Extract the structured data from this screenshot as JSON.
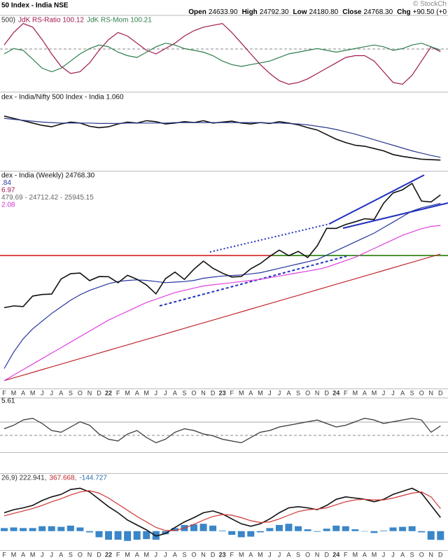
{
  "header": {
    "title": "50 Index - India NSE",
    "watermark": "© StockCh",
    "quote": [
      {
        "label": "Open",
        "value": "24633.90"
      },
      {
        "label": "High",
        "value": "24792.30"
      },
      {
        "label": "Low",
        "value": "24180.80"
      },
      {
        "label": "Close",
        "value": "24768.30"
      },
      {
        "label": "Chg",
        "value": "+90.50 (+0"
      }
    ]
  },
  "chart_data": [
    {
      "type": "line",
      "legend": [
        "500)",
        "JdK RS-Ratio 100.12",
        "JdK RS-Mom 100.21"
      ],
      "legend_colors": [
        "#333333",
        "#a0174f",
        "#2e7d4a"
      ],
      "ylim": [
        98,
        102
      ],
      "series": [
        {
          "color": "#a0174f",
          "values": [
            100.5,
            101.2,
            101.7,
            101.5,
            100.8,
            100.0,
            99.3,
            98.9,
            99.0,
            99.5,
            100.2,
            100.8,
            101.2,
            101.0,
            100.6,
            100.2,
            100.0,
            100.3,
            100.6,
            101.0,
            101.3,
            101.5,
            101.6,
            101.7,
            101.2,
            100.6,
            100.0,
            99.4,
            98.9,
            98.5,
            98.3,
            98.4,
            98.6,
            98.9,
            99.2,
            99.5,
            99.8,
            99.9,
            99.9,
            99.6,
            99.0,
            98.4,
            98.3,
            98.8,
            99.6,
            100.4,
            100.12
          ]
        },
        {
          "color": "#2e7d4a",
          "values": [
            100.0,
            100.3,
            100.2,
            99.7,
            99.2,
            99.0,
            99.2,
            99.6,
            100.0,
            100.3,
            100.5,
            100.4,
            100.1,
            99.9,
            99.8,
            100.1,
            100.4,
            100.6,
            100.5,
            100.3,
            100.2,
            100.1,
            99.9,
            99.6,
            99.4,
            99.3,
            99.4,
            99.5,
            99.6,
            99.8,
            100.0,
            100.1,
            100.2,
            100.3,
            100.2,
            100.1,
            100.2,
            100.3,
            100.4,
            100.5,
            100.4,
            100.2,
            100.3,
            100.5,
            100.6,
            100.4,
            100.21
          ]
        }
      ]
    },
    {
      "type": "line",
      "legend": [
        "dex - India/Nifty 500 Index - India 1.060"
      ],
      "legend_colors": [
        "#111111"
      ],
      "ylim": [
        1.04,
        1.2
      ],
      "series": [
        {
          "color": "#111111",
          "values": [
            1.155,
            1.15,
            1.145,
            1.14,
            1.135,
            1.132,
            1.138,
            1.142,
            1.14,
            1.133,
            1.13,
            1.132,
            1.138,
            1.142,
            1.14,
            1.145,
            1.143,
            1.138,
            1.14,
            1.143,
            1.141,
            1.145,
            1.14,
            1.142,
            1.144,
            1.14,
            1.138,
            1.141,
            1.139,
            1.143,
            1.14,
            1.136,
            1.13,
            1.125,
            1.115,
            1.105,
            1.098,
            1.092,
            1.09,
            1.085,
            1.08,
            1.072,
            1.068,
            1.065,
            1.062,
            1.061,
            1.06
          ]
        },
        {
          "color": "#2b3a8c",
          "values": [
            1.15,
            1.148,
            1.146,
            1.144,
            1.142,
            1.141,
            1.14,
            1.14,
            1.14,
            1.14,
            1.139,
            1.139,
            1.139,
            1.14,
            1.14,
            1.14,
            1.14,
            1.14,
            1.141,
            1.141,
            1.141,
            1.141,
            1.141,
            1.141,
            1.141,
            1.141,
            1.141,
            1.141,
            1.14,
            1.14,
            1.139,
            1.138,
            1.136,
            1.133,
            1.13,
            1.126,
            1.121,
            1.116,
            1.11,
            1.104,
            1.098,
            1.092,
            1.086,
            1.08,
            1.075,
            1.07,
            1.066
          ]
        }
      ]
    },
    {
      "type": "line",
      "legend": [
        "dex - India (Weekly) 24768.30",
        ".84",
        "6.97",
        "479.69 - 24712.42 - 25945.15",
        "2.08"
      ],
      "legend_colors": [
        "#111111",
        "#2535a0",
        "#a0174f",
        "#666666",
        "#d030d0"
      ],
      "ylim": [
        7250,
        26830
      ],
      "categories": [
        "F",
        "M",
        "A",
        "M",
        "J",
        "J",
        "A",
        "S",
        "O",
        "N",
        "D",
        "22",
        "F",
        "M",
        "A",
        "M",
        "J",
        "J",
        "A",
        "S",
        "O",
        "N",
        "D",
        "23",
        "F",
        "M",
        "A",
        "M",
        "J",
        "J",
        "A",
        "S",
        "O",
        "N",
        "D",
        "24",
        "F",
        "M",
        "A",
        "M",
        "J",
        "J",
        "A",
        "S",
        "O",
        "N",
        "D"
      ],
      "series": [
        {
          "color": "#c0282d",
          "values": [
            7900,
            8150,
            8400,
            8650,
            8900,
            9150,
            9400,
            9650,
            9900,
            10150,
            10400,
            10650,
            10900,
            11150,
            11400,
            11650,
            11900,
            12150,
            12400,
            12650,
            12900,
            13150,
            13400,
            13650,
            13900,
            14150,
            14400,
            14650,
            14900,
            15150,
            15400,
            15650,
            15900,
            16150,
            16400,
            16650,
            16900,
            17150,
            17400,
            17650,
            17900,
            18150,
            18400,
            18650,
            18900,
            19150,
            19400
          ]
        },
        {
          "color": "#e040e0",
          "values": [
            7900,
            8400,
            8900,
            9400,
            9900,
            10400,
            10900,
            11400,
            11900,
            12400,
            12900,
            13400,
            13800,
            14200,
            14600,
            15000,
            15300,
            15600,
            15900,
            16100,
            16300,
            16500,
            16600,
            16700,
            16800,
            16900,
            17000,
            17100,
            17250,
            17400,
            17550,
            17700,
            17850,
            18000,
            18200,
            18500,
            18800,
            19100,
            19500,
            19900,
            20300,
            20700,
            21100,
            21400,
            21700,
            21900,
            22000
          ]
        },
        {
          "color": "#2535a0",
          "values": [
            9000,
            10500,
            11700,
            12600,
            13300,
            14000,
            14600,
            15200,
            15700,
            16100,
            16400,
            16700,
            16900,
            17000,
            17050,
            17000,
            16900,
            16800,
            16850,
            16900,
            17000,
            17200,
            17300,
            17400,
            17450,
            17500,
            17600,
            17700,
            17900,
            18100,
            18300,
            18500,
            18700,
            18900,
            19300,
            19700,
            20100,
            20500,
            20900,
            21300,
            21800,
            22300,
            22800,
            23300,
            23600,
            23800,
            24000
          ]
        },
        {
          "color": "#111111",
          "values": [
            14529,
            14690,
            14631,
            15583,
            15722,
            15763,
            17132,
            17618,
            17671,
            16983,
            17354,
            17340,
            16794,
            17465,
            17103,
            16585,
            15780,
            17158,
            17759,
            17094,
            18012,
            18758,
            18105,
            17662,
            17304,
            17360,
            18065,
            18534,
            19189,
            19754,
            19254,
            19638,
            19080,
            20133,
            21731,
            21726,
            22083,
            22327,
            22605,
            22531,
            24011,
            24951,
            25236,
            25811,
            24205,
            24131,
            24768
          ]
        }
      ]
    },
    {
      "type": "line",
      "legend": [
        "5.61"
      ],
      "legend_colors": [
        "#111111"
      ],
      "ylim": [
        -9,
        21
      ],
      "series": [
        {
          "color": "#333333",
          "values": [
            4,
            6,
            9,
            10,
            7,
            3,
            2,
            5,
            8,
            6,
            1,
            -2,
            -3,
            1,
            3,
            -1,
            -4,
            -2,
            2,
            4,
            3,
            1,
            0,
            -2,
            -3,
            -4,
            -1,
            2,
            3,
            5,
            6,
            7,
            8,
            9,
            7,
            5,
            6,
            8,
            10,
            9,
            7,
            8,
            9,
            10,
            9,
            2,
            5.61
          ]
        }
      ]
    },
    {
      "type": "line",
      "legend": [
        "26,9) 222.941,",
        "367.668,",
        "-144.727"
      ],
      "legend_colors": [
        "#333333",
        "#c0282d",
        "#2a6fb0"
      ],
      "ylim": [
        -300,
        900
      ],
      "series": [
        {
          "style": "histogram",
          "color": "#3a86c8",
          "values": [
            50,
            60,
            50,
            50,
            80,
            80,
            70,
            90,
            60,
            -20,
            -100,
            -140,
            -140,
            -160,
            -140,
            -130,
            -140,
            -50,
            50,
            100,
            110,
            120,
            90,
            10,
            -60,
            -100,
            -90,
            -20,
            50,
            100,
            120,
            80,
            30,
            -10,
            40,
            90,
            80,
            30,
            0,
            -30,
            10,
            60,
            70,
            80,
            -20,
            -140,
            -144.727
          ]
        },
        {
          "color": "#111111",
          "values": [
            300,
            350,
            380,
            420,
            500,
            560,
            600,
            680,
            700,
            640,
            520,
            400,
            300,
            180,
            100,
            20,
            -80,
            -40,
            60,
            150,
            220,
            300,
            330,
            280,
            200,
            120,
            80,
            120,
            200,
            300,
            380,
            400,
            380,
            350,
            420,
            520,
            560,
            540,
            520,
            480,
            520,
            600,
            650,
            700,
            620,
            420,
            222.941
          ]
        },
        {
          "color": "#d33333",
          "values": [
            250,
            290,
            330,
            370,
            420,
            480,
            530,
            590,
            640,
            660,
            620,
            540,
            440,
            340,
            240,
            150,
            60,
            10,
            10,
            50,
            110,
            180,
            240,
            270,
            260,
            220,
            170,
            140,
            150,
            200,
            260,
            320,
            350,
            360,
            380,
            430,
            480,
            510,
            520,
            510,
            510,
            540,
            580,
            620,
            640,
            560,
            367.668
          ]
        }
      ]
    }
  ]
}
